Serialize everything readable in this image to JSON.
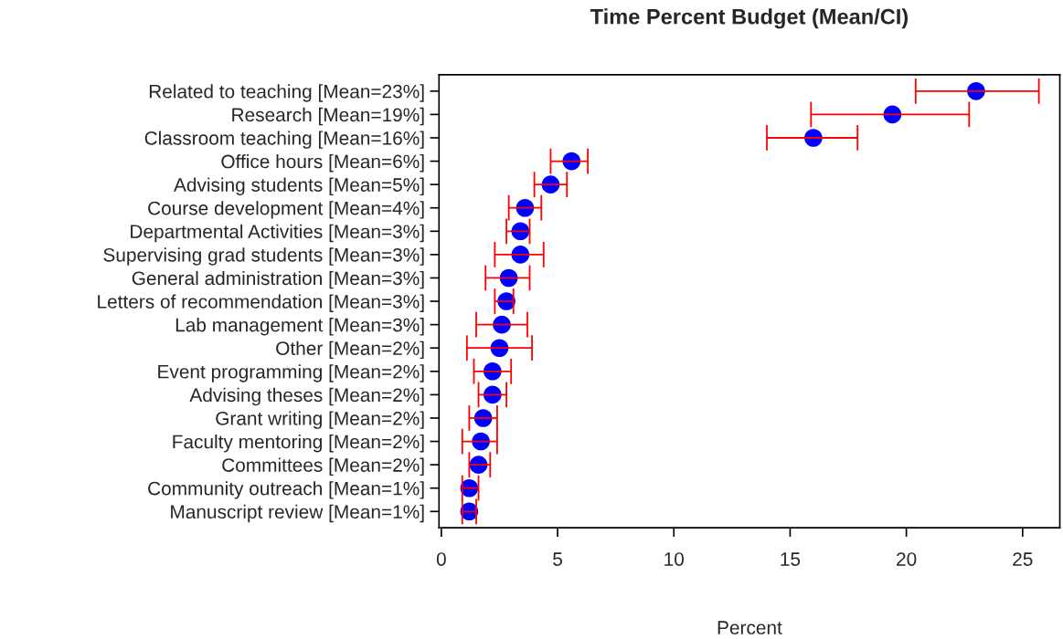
{
  "chart_data": {
    "type": "scatter",
    "orientation": "horizontal",
    "title": "Time Percent Budget (Mean/CI)",
    "xlabel": "Percent",
    "categories": [
      "Related to teaching [Mean=23%]",
      "Research [Mean=19%]",
      "Classroom teaching [Mean=16%]",
      "Office hours [Mean=6%]",
      "Advising students [Mean=5%]",
      "Course development [Mean=4%]",
      "Departmental Activities [Mean=3%]",
      "Supervising grad students [Mean=3%]",
      "General administration [Mean=3%]",
      "Letters of recommendation [Mean=3%]",
      "Lab management [Mean=3%]",
      "Other [Mean=2%]",
      "Event programming [Mean=2%]",
      "Advising theses [Mean=2%]",
      "Grant writing [Mean=2%]",
      "Faculty mentoring [Mean=2%]",
      "Committees [Mean=2%]",
      "Community outreach [Mean=1%]",
      "Manuscript review [Mean=1%]"
    ],
    "values": [
      23.0,
      19.4,
      16.0,
      5.6,
      4.7,
      3.6,
      3.4,
      3.4,
      2.9,
      2.8,
      2.6,
      2.5,
      2.2,
      2.2,
      1.8,
      1.7,
      1.6,
      1.2,
      1.2
    ],
    "errors": [
      [
        20.4,
        25.7
      ],
      [
        15.9,
        22.7
      ],
      [
        14.0,
        17.9
      ],
      [
        4.7,
        6.3
      ],
      [
        4.0,
        5.4
      ],
      [
        2.9,
        4.3
      ],
      [
        2.8,
        3.8
      ],
      [
        2.3,
        4.4
      ],
      [
        1.9,
        3.8
      ],
      [
        2.3,
        3.1
      ],
      [
        1.5,
        3.7
      ],
      [
        1.1,
        3.9
      ],
      [
        1.4,
        3.0
      ],
      [
        1.6,
        2.8
      ],
      [
        1.2,
        2.4
      ],
      [
        0.9,
        2.4
      ],
      [
        1.2,
        2.1
      ],
      [
        0.9,
        1.6
      ],
      [
        0.9,
        1.5
      ]
    ],
    "color": "#0000ff",
    "marker": "circle",
    "xlim": [
      -0.1,
      26.6
    ],
    "xticks": [
      0,
      5,
      10,
      15,
      20,
      25
    ],
    "grid": false
  }
}
